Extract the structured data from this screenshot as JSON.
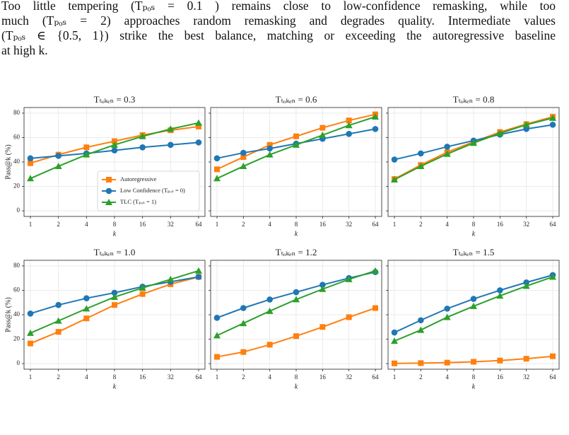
{
  "text": {
    "lines": [
      "Too little tempering (Tₚₒₛ = 0.1 ) remains close to low-confidence remasking, while too",
      "much (Tₚₒₛ = 2) approaches random remasking and degrades quality. Intermediate values",
      "(Tₚₒₛ ∈ {0.5, 1}) strike the best balance, matching or exceeding the autoregressive baseline",
      "at high k."
    ]
  },
  "chart_data": [
    {
      "type": "line",
      "title": "Tₜₒₖₑₙ = 0.3",
      "xlabel": "k",
      "ylabel": "Pass@k (%)",
      "categories": [
        1,
        2,
        4,
        8,
        16,
        32,
        64
      ],
      "ylim": [
        -4.6,
        84.6
      ],
      "yticks": [
        0,
        20,
        40,
        60,
        80
      ],
      "ytick_labels": true,
      "grid": true,
      "legend": "lower right",
      "series": [
        {
          "name": "Autoregressive",
          "color": "#ff7f0e",
          "marker": "square",
          "values": [
            39,
            46,
            52,
            57,
            62,
            66,
            69
          ]
        },
        {
          "name": "Low Confidence (Tₚₒₛ = 0)",
          "color": "#1f77b4",
          "marker": "circle",
          "values": [
            43,
            45,
            47,
            49.5,
            52,
            54,
            56
          ]
        },
        {
          "name": "TLC (Tₚₒₛ = 1)",
          "color": "#2ca02c",
          "marker": "triangle",
          "values": [
            26.5,
            36.5,
            46,
            54,
            61,
            67,
            72
          ]
        }
      ]
    },
    {
      "type": "line",
      "title": "Tₜₒₖₑₙ = 0.6",
      "xlabel": "k",
      "categories": [
        1,
        2,
        4,
        8,
        16,
        32,
        64
      ],
      "ylim": [
        -4.6,
        84.6
      ],
      "yticks": [
        0,
        20,
        40,
        60,
        80
      ],
      "ytick_labels": false,
      "grid": true,
      "series": [
        {
          "color": "#ff7f0e",
          "marker": "square",
          "values": [
            34,
            44,
            54,
            61,
            68,
            74,
            79
          ]
        },
        {
          "color": "#1f77b4",
          "marker": "circle",
          "values": [
            43,
            47.5,
            51,
            55,
            59,
            63,
            67
          ]
        },
        {
          "color": "#2ca02c",
          "marker": "triangle",
          "values": [
            26.5,
            36.5,
            46,
            54,
            62,
            70,
            77
          ]
        }
      ]
    },
    {
      "type": "line",
      "title": "Tₜₒₖₑₙ = 0.8",
      "xlabel": "k",
      "categories": [
        1,
        2,
        4,
        8,
        16,
        32,
        64
      ],
      "ylim": [
        -4.6,
        84.6
      ],
      "yticks": [
        0,
        20,
        40,
        60,
        80
      ],
      "ytick_labels": false,
      "grid": true,
      "series": [
        {
          "color": "#ff7f0e",
          "marker": "square",
          "values": [
            26,
            37.5,
            48,
            56.5,
            64.5,
            71,
            77
          ]
        },
        {
          "color": "#1f77b4",
          "marker": "circle",
          "values": [
            42,
            47,
            52.5,
            57.5,
            62.5,
            67,
            70.5
          ]
        },
        {
          "color": "#2ca02c",
          "marker": "triangle",
          "values": [
            25.5,
            36.5,
            46.5,
            55.5,
            63.5,
            70.5,
            76
          ]
        }
      ]
    },
    {
      "type": "line",
      "title": "Tₜₒₖₑₙ = 1.0",
      "xlabel": "k",
      "ylabel": "Pass@k (%)",
      "categories": [
        1,
        2,
        4,
        8,
        16,
        32,
        64
      ],
      "ylim": [
        -4.6,
        84.6
      ],
      "yticks": [
        0,
        20,
        40,
        60,
        80
      ],
      "ytick_labels": true,
      "grid": true,
      "series": [
        {
          "color": "#ff7f0e",
          "marker": "square",
          "values": [
            16.5,
            26,
            37,
            48,
            57,
            65,
            71
          ]
        },
        {
          "color": "#1f77b4",
          "marker": "circle",
          "values": [
            41,
            48,
            53.5,
            58,
            63,
            67,
            71
          ]
        },
        {
          "color": "#2ca02c",
          "marker": "triangle",
          "values": [
            25,
            35,
            45,
            54.5,
            62,
            69,
            76
          ]
        }
      ]
    },
    {
      "type": "line",
      "title": "Tₜₒₖₑₙ = 1.2",
      "xlabel": "k",
      "categories": [
        1,
        2,
        4,
        8,
        16,
        32,
        64
      ],
      "ylim": [
        -4.6,
        84.6
      ],
      "yticks": [
        0,
        20,
        40,
        60,
        80
      ],
      "ytick_labels": false,
      "grid": true,
      "series": [
        {
          "color": "#ff7f0e",
          "marker": "square",
          "values": [
            5.5,
            9.5,
            15.5,
            22.5,
            30,
            38,
            45.5
          ]
        },
        {
          "color": "#1f77b4",
          "marker": "circle",
          "values": [
            37.5,
            45.5,
            52.5,
            58.5,
            64.5,
            70,
            75
          ]
        },
        {
          "color": "#2ca02c",
          "marker": "triangle",
          "values": [
            23,
            33,
            43,
            52.5,
            61,
            69,
            76
          ]
        }
      ]
    },
    {
      "type": "line",
      "title": "Tₜₒₖₑₙ = 1.5",
      "xlabel": "k",
      "categories": [
        1,
        2,
        4,
        8,
        16,
        32,
        64
      ],
      "ylim": [
        -4.6,
        84.6
      ],
      "yticks": [
        0,
        20,
        40,
        60,
        80
      ],
      "ytick_labels": false,
      "grid": true,
      "series": [
        {
          "color": "#ff7f0e",
          "marker": "square",
          "values": [
            0.2,
            0.4,
            0.8,
            1.5,
            2.5,
            4,
            6
          ]
        },
        {
          "color": "#1f77b4",
          "marker": "circle",
          "values": [
            25.5,
            35.5,
            45,
            53,
            60,
            66.5,
            72.5
          ]
        },
        {
          "color": "#2ca02c",
          "marker": "triangle",
          "values": [
            18.5,
            27.5,
            38,
            47,
            55.5,
            63.5,
            71
          ]
        }
      ]
    }
  ]
}
